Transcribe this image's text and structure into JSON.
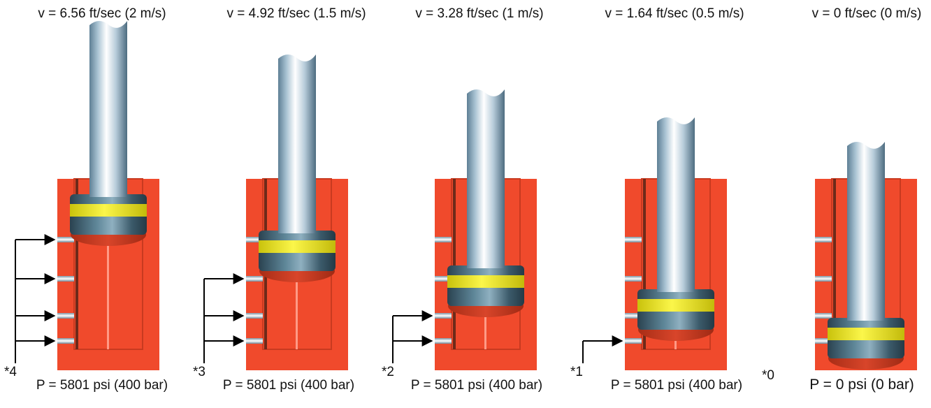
{
  "stages": [
    {
      "velocity": "v = 6.56 ft/sec (2 m/s)",
      "pressure": "P = 5801 psi (400 bar)",
      "marker": "*4"
    },
    {
      "velocity": "v = 4.92 ft/sec (1.5 m/s)",
      "pressure": "P = 5801 psi (400 bar)",
      "marker": "*3"
    },
    {
      "velocity": "v = 3.28 ft/sec (1 m/s)",
      "pressure": "P = 5801 psi (400 bar)",
      "marker": "*2"
    },
    {
      "velocity": "v = 1.64 ft/sec (0.5 m/s)",
      "pressure": "P = 5801 psi (400 bar)",
      "marker": "*1"
    },
    {
      "velocity": "v = 0 ft/sec (0 m/s)",
      "pressure": "P = 0 psi (0 bar)",
      "marker": "*0"
    }
  ],
  "colors": {
    "cylinder_body": "#f04a2c",
    "cylinder_shadow": "#c83a20",
    "seal_band": "#f2ec1e",
    "piston_dark": "#2f4a58",
    "rod_light": "#eef4f8",
    "rod_dark": "#5e7f95"
  }
}
